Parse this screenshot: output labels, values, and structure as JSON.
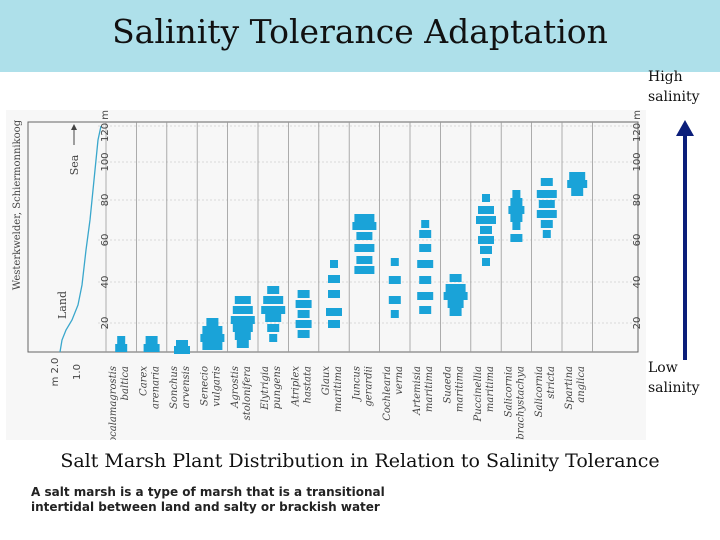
{
  "header": {
    "title": "Salinity Tolerance Adaptation"
  },
  "legend": {
    "high_label": "High salinity",
    "low_label": "Low salinity"
  },
  "caption": "Salt Marsh Plant Distribution in Relation to Salinity Tolerance",
  "description": "A salt marsh is a type of marsh that is a transitional intertidal between land and salty or brackish water",
  "colors": {
    "title_bar": "#aee0ea",
    "bars": "#1aa3d8",
    "profile_line": "#3aa7cc",
    "arrow": "#0b1e7a"
  },
  "diagram": {
    "left_axis_labels": [
      "Westerkwelder, Schiermonnikoog",
      "Land",
      "Sea"
    ],
    "distance_ticks": [
      "20",
      "40",
      "60",
      "80",
      "100",
      "120 m"
    ],
    "depth_ticks": [
      "2.0",
      "1.0"
    ],
    "depth_unit": "m",
    "species": [
      "Ammocalamagrostis baltica",
      "Carex arenaria",
      "Sonchus arvensis",
      "Senecio vulgaris",
      "Agrostis stolonifera",
      "Elytrigia pungens",
      "Atriplex hastata",
      "Glaux maritima",
      "Juncus gerardii",
      "Cochlearia verna",
      "Artemisia maritima",
      "Suaeda maritima",
      "Puccinellia maritima",
      "Salicornia brachystachya",
      "Salicornia stricta",
      "Spartina anglica"
    ]
  }
}
